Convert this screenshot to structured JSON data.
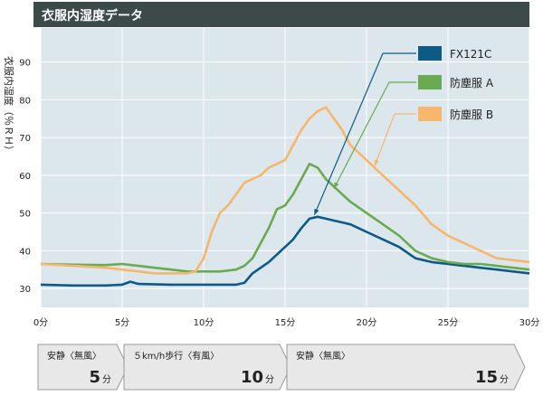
{
  "header": {
    "title": "衣服内湿度データ"
  },
  "colors": {
    "header_bg": "#3d4a4a",
    "plot_bg": "#dce6ed",
    "grid": "#ffffff",
    "fx": "#0e5a86",
    "a": "#6aaa50",
    "b": "#f6b66c",
    "phase_box": "#e8e8e8"
  },
  "chart_data": {
    "type": "line",
    "ylabel": "衣服内湿度（％ＲＨ）",
    "xlim": [
      0,
      30
    ],
    "ylim": [
      25,
      99
    ],
    "x_ticks": [
      0,
      5,
      10,
      15,
      20,
      25,
      30
    ],
    "x_tick_labels": [
      "0分",
      "5分",
      "10分",
      "15分",
      "20分",
      "25分",
      "30分"
    ],
    "y_ticks": [
      30,
      40,
      50,
      60,
      70,
      80,
      90
    ],
    "y_tick_labels": [
      "30",
      "40",
      "50",
      "60",
      "70",
      "80",
      "90"
    ],
    "grid": true,
    "legend_position": "top-right",
    "series": [
      {
        "name": "FX121C",
        "color": "#0e5a86",
        "points": [
          [
            0,
            31
          ],
          [
            2,
            30.8
          ],
          [
            4,
            30.8
          ],
          [
            5,
            31
          ],
          [
            5.5,
            31.8
          ],
          [
            6,
            31.2
          ],
          [
            8,
            31
          ],
          [
            10,
            31
          ],
          [
            11,
            31
          ],
          [
            12,
            31
          ],
          [
            12.5,
            31.5
          ],
          [
            13,
            34
          ],
          [
            14,
            37
          ],
          [
            15,
            41
          ],
          [
            15.5,
            43
          ],
          [
            16,
            46
          ],
          [
            16.5,
            48.5
          ],
          [
            17,
            49
          ],
          [
            17.5,
            48.5
          ],
          [
            18,
            48
          ],
          [
            19,
            47
          ],
          [
            20,
            45
          ],
          [
            21,
            43
          ],
          [
            22,
            41
          ],
          [
            23,
            38
          ],
          [
            24,
            37
          ],
          [
            25,
            36.5
          ],
          [
            26,
            36
          ],
          [
            27,
            35.5
          ],
          [
            28,
            35
          ],
          [
            29,
            34.5
          ],
          [
            30,
            34
          ]
        ]
      },
      {
        "name": "防塵服 A",
        "color": "#6aaa50",
        "points": [
          [
            0,
            36.5
          ],
          [
            2,
            36.3
          ],
          [
            4,
            36.2
          ],
          [
            5,
            36.5
          ],
          [
            6,
            36
          ],
          [
            7,
            35.5
          ],
          [
            8,
            35
          ],
          [
            9,
            34.5
          ],
          [
            10,
            34.5
          ],
          [
            11,
            34.5
          ],
          [
            12,
            35
          ],
          [
            12.5,
            36
          ],
          [
            13,
            38
          ],
          [
            13.5,
            42
          ],
          [
            14,
            46
          ],
          [
            14.5,
            51
          ],
          [
            15,
            52
          ],
          [
            15.5,
            55
          ],
          [
            16,
            59
          ],
          [
            16.5,
            63
          ],
          [
            17,
            62
          ],
          [
            17.5,
            59
          ],
          [
            18,
            57
          ],
          [
            19,
            53
          ],
          [
            20,
            50
          ],
          [
            21,
            47
          ],
          [
            22,
            44
          ],
          [
            23,
            40
          ],
          [
            24,
            38
          ],
          [
            25,
            37
          ],
          [
            26,
            36.5
          ],
          [
            27,
            36.5
          ],
          [
            28,
            36
          ],
          [
            29,
            35.5
          ],
          [
            30,
            35
          ]
        ]
      },
      {
        "name": "防塵服 B",
        "color": "#f6b66c",
        "points": [
          [
            0,
            36.5
          ],
          [
            2,
            36
          ],
          [
            4,
            35.5
          ],
          [
            5,
            35
          ],
          [
            6,
            34.5
          ],
          [
            7,
            34
          ],
          [
            8,
            34
          ],
          [
            9,
            34
          ],
          [
            9.5,
            34.5
          ],
          [
            10,
            38
          ],
          [
            10.5,
            45
          ],
          [
            11,
            50
          ],
          [
            11.5,
            52
          ],
          [
            12,
            55
          ],
          [
            12.5,
            58
          ],
          [
            13,
            59
          ],
          [
            13.5,
            60
          ],
          [
            14,
            62
          ],
          [
            14.5,
            63
          ],
          [
            15,
            64
          ],
          [
            15.5,
            68
          ],
          [
            16,
            72
          ],
          [
            16.5,
            75
          ],
          [
            17,
            77
          ],
          [
            17.5,
            78
          ],
          [
            18,
            75
          ],
          [
            18.5,
            72
          ],
          [
            19,
            68
          ],
          [
            20,
            64
          ],
          [
            21,
            60
          ],
          [
            22,
            56
          ],
          [
            23,
            52
          ],
          [
            24,
            47
          ],
          [
            25,
            44
          ],
          [
            26,
            42
          ],
          [
            27,
            40
          ],
          [
            28,
            38
          ],
          [
            29,
            37.5
          ],
          [
            30,
            37
          ]
        ]
      }
    ]
  },
  "phases": [
    {
      "label": "安静〈無風〉",
      "num": "5",
      "unit": "分"
    },
    {
      "label": "５km/h歩行〈有風〉",
      "num": "10",
      "unit": "分"
    },
    {
      "label": "安静〈無風〉",
      "num": "15",
      "unit": "分"
    }
  ]
}
